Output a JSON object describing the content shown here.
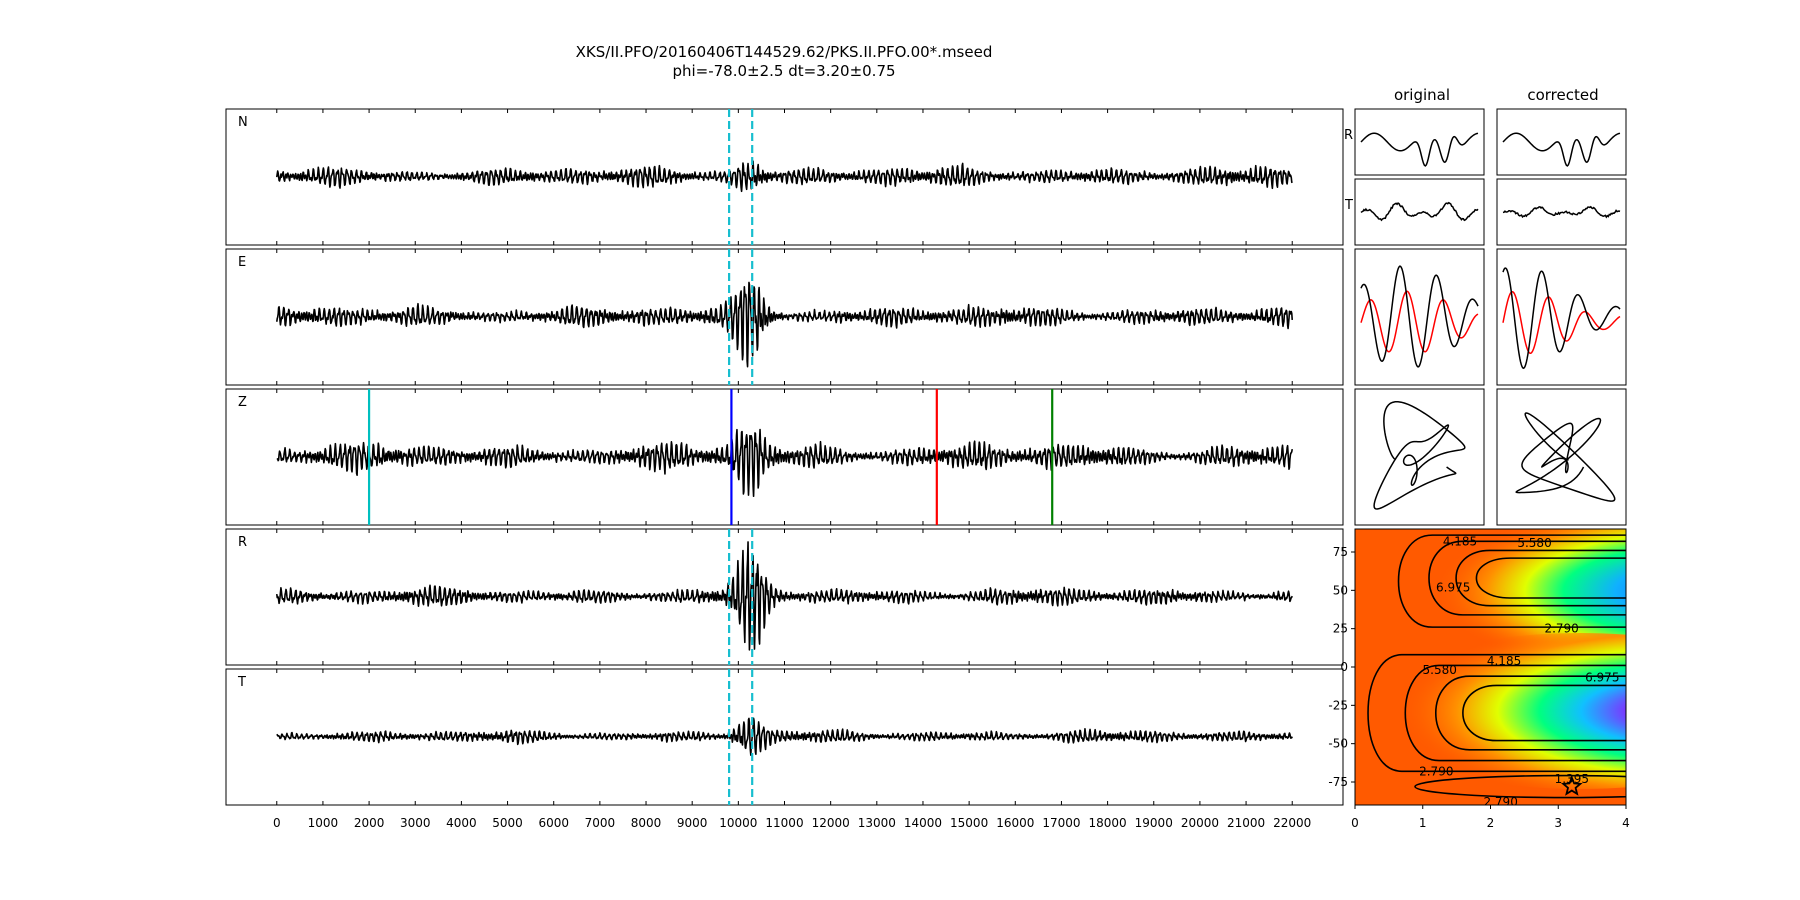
{
  "figure": {
    "title": "XKS/II.PFO/20160406T144529.62/PKS.II.PFO.00*.mseed",
    "subtitle": "phi=-78.0±2.5 dt=3.20±0.75"
  },
  "chart_data": [
    {
      "type": "line",
      "panel": "traces",
      "xlim": [
        -1100,
        23100
      ],
      "x_ticks": [
        0,
        1000,
        2000,
        3000,
        4000,
        5000,
        6000,
        7000,
        8000,
        9000,
        10000,
        11000,
        12000,
        13000,
        14000,
        15000,
        16000,
        17000,
        18000,
        19000,
        20000,
        21000,
        22000
      ],
      "trace_x_range": [
        0,
        22000
      ],
      "series": [
        {
          "name": "N",
          "color": "#000000"
        },
        {
          "name": "E",
          "color": "#000000"
        },
        {
          "name": "Z",
          "color": "#000000"
        },
        {
          "name": "R",
          "color": "#000000"
        },
        {
          "name": "T",
          "color": "#000000"
        }
      ],
      "window_lines": [
        9800,
        10300
      ],
      "window_line_color": "#17becf",
      "phase_markers": [
        {
          "x": 2000,
          "color": "#00bfbf"
        },
        {
          "x": 9850,
          "color": "#0000ff"
        },
        {
          "x": 14300,
          "color": "#ff0000"
        },
        {
          "x": 16800,
          "color": "#008000"
        }
      ]
    },
    {
      "type": "line",
      "panel": "particle-window",
      "column_titles": [
        "original",
        "corrected"
      ],
      "row_labels": [
        "R",
        "T"
      ],
      "traces": [
        "R",
        "T",
        "R-T overlay",
        "particle motion"
      ]
    },
    {
      "type": "heatmap",
      "panel": "error-surface",
      "xlim": [
        0,
        4
      ],
      "ylim": [
        -90,
        90
      ],
      "x_ticks": [
        0,
        1,
        2,
        3,
        4
      ],
      "y_ticks": [
        75,
        50,
        25,
        0,
        -25,
        -50,
        -75
      ],
      "contour_levels": [
        "1.395",
        "2.790",
        "4.185",
        "5.580",
        "6.975"
      ],
      "best": {
        "dt": 3.2,
        "phi": -78.0
      }
    }
  ]
}
